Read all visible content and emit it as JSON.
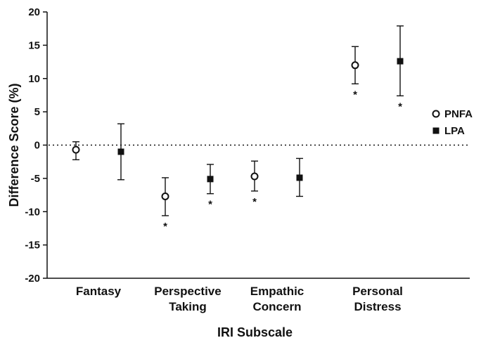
{
  "chart_data": {
    "type": "scatter",
    "xlabel": "IRI Subscale",
    "ylabel": "Difference Score (%)",
    "ylim": [
      -20,
      20
    ],
    "yticks": [
      "20",
      "15",
      "10",
      "5",
      "0",
      "-5",
      "-10",
      "-15",
      "-20"
    ],
    "reference_line": 0,
    "categories": [
      {
        "lines": [
          "Fantasy"
        ]
      },
      {
        "lines": [
          "Perspective",
          "Taking"
        ]
      },
      {
        "lines": [
          "Empathic",
          "Concern"
        ]
      },
      {
        "lines": [
          "Personal",
          "Distress"
        ]
      }
    ],
    "legend_position": "right",
    "series": [
      {
        "name": "PNFA",
        "marker": "open-circle",
        "points": [
          {
            "mean": -0.7,
            "lower": -2.2,
            "upper": 0.5,
            "sig": ""
          },
          {
            "mean": -7.7,
            "lower": -10.6,
            "upper": -4.9,
            "sig": "*"
          },
          {
            "mean": -4.7,
            "lower": -6.9,
            "upper": -2.4,
            "sig": "*"
          },
          {
            "mean": 12.0,
            "lower": 9.2,
            "upper": 14.8,
            "sig": "*"
          }
        ]
      },
      {
        "name": "LPA",
        "marker": "filled-square",
        "points": [
          {
            "mean": -1.0,
            "lower": -5.2,
            "upper": 3.2,
            "sig": ""
          },
          {
            "mean": -5.1,
            "lower": -7.3,
            "upper": -2.9,
            "sig": "*"
          },
          {
            "mean": -4.9,
            "lower": -7.7,
            "upper": -2.0,
            "sig": ""
          },
          {
            "mean": 12.6,
            "lower": 7.4,
            "upper": 17.9,
            "sig": "*"
          }
        ]
      }
    ]
  }
}
